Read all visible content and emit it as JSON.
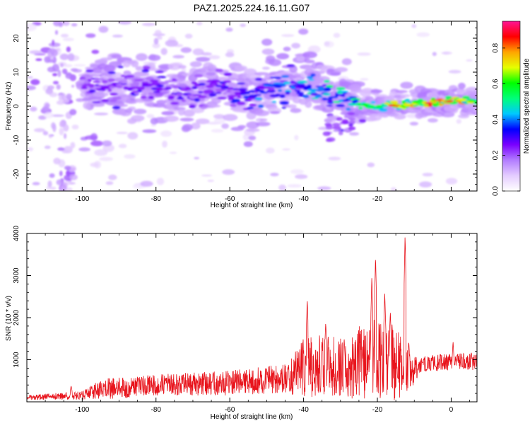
{
  "figure": {
    "title": "PAZ1.2025.224.16.11.G07"
  },
  "chart_data": [
    {
      "type": "heatmap",
      "xlabel": "Height of straight line (km)",
      "ylabel": "Frequency (Hz)",
      "xlim": [
        -115,
        7
      ],
      "ylim": [
        -25,
        25
      ],
      "xticks": [
        -100,
        -80,
        -60,
        -40,
        -20,
        0
      ],
      "yticks": [
        -20,
        -10,
        0,
        10,
        20
      ],
      "grid": false,
      "colorbar": {
        "label": "Normalized spectral amplitude",
        "range": [
          0,
          0.95
        ],
        "ticks": [
          "0.0",
          "0.2",
          "0.4",
          "0.6",
          "0.8"
        ],
        "colormap": [
          "#ffffff",
          "#e4ccff",
          "#b27cff",
          "#7a00ff",
          "#0000ff",
          "#00c8ff",
          "#00ff7a",
          "#00ff00",
          "#e6ff00",
          "#ffa500",
          "#ff0000",
          "#ff1493"
        ]
      },
      "ridge": [
        {
          "x": -100,
          "y": 5.5,
          "a": 0.28
        },
        {
          "x": -90,
          "y": 6,
          "a": 0.3
        },
        {
          "x": -80,
          "y": 5.5,
          "a": 0.3
        },
        {
          "x": -70,
          "y": 5,
          "a": 0.3
        },
        {
          "x": -60,
          "y": 5,
          "a": 0.32
        },
        {
          "x": -54,
          "y": 2.5,
          "a": 0.4
        },
        {
          "x": -45,
          "y": 7,
          "a": 0.42
        },
        {
          "x": -40,
          "y": 6,
          "a": 0.48
        },
        {
          "x": -35,
          "y": 4,
          "a": 0.5
        },
        {
          "x": -30,
          "y": 2,
          "a": 0.5
        },
        {
          "x": -25,
          "y": 0.5,
          "a": 0.55
        },
        {
          "x": -20,
          "y": 0,
          "a": 0.6
        },
        {
          "x": -15,
          "y": 0.5,
          "a": 0.8
        },
        {
          "x": -5,
          "y": 1,
          "a": 0.85
        },
        {
          "x": 0,
          "y": 1.5,
          "a": 0.8
        },
        {
          "x": 7,
          "y": 1.5,
          "a": 0.7
        }
      ]
    },
    {
      "type": "line",
      "xlabel": "Height of straight line (km)",
      "ylabel": "SNR (10 * v/v)",
      "xlim": [
        -115,
        7
      ],
      "ylim": [
        0,
        4000
      ],
      "xticks": [
        -100,
        -80,
        -60,
        -40,
        -20,
        0
      ],
      "yticks": [
        1000,
        2000,
        3000,
        4000
      ],
      "grid": false,
      "series": [
        {
          "color": "#e8141c",
          "envelope": [
            {
              "x": -115,
              "base": 100,
              "spread": 60
            },
            {
              "x": -100,
              "base": 150,
              "spread": 100
            },
            {
              "x": -95,
              "base": 300,
              "spread": 250
            },
            {
              "x": -80,
              "base": 400,
              "spread": 250
            },
            {
              "x": -60,
              "base": 450,
              "spread": 300
            },
            {
              "x": -45,
              "base": 550,
              "spread": 350
            },
            {
              "x": -40,
              "base": 800,
              "spread": 700
            },
            {
              "x": -35,
              "base": 900,
              "spread": 800
            },
            {
              "x": -30,
              "base": 800,
              "spread": 700
            },
            {
              "x": -25,
              "base": 900,
              "spread": 900
            },
            {
              "x": -20,
              "base": 1000,
              "spread": 1000
            },
            {
              "x": -15,
              "base": 900,
              "spread": 900
            },
            {
              "x": -11,
              "base": 700,
              "spread": 400
            },
            {
              "x": -8,
              "base": 900,
              "spread": 200
            },
            {
              "x": 0,
              "base": 950,
              "spread": 200
            },
            {
              "x": 7,
              "base": 950,
              "spread": 200
            }
          ],
          "peaks": [
            {
              "x": -103,
              "y": 380
            },
            {
              "x": -39,
              "y": 2450
            },
            {
              "x": -35,
              "y": 1450
            },
            {
              "x": -34,
              "y": 1900
            },
            {
              "x": -29,
              "y": 1500
            },
            {
              "x": -24,
              "y": 1200
            },
            {
              "x": -21.5,
              "y": 3000
            },
            {
              "x": -20.5,
              "y": 3480
            },
            {
              "x": -18,
              "y": 2600
            },
            {
              "x": -16.5,
              "y": 2150
            },
            {
              "x": -12.5,
              "y": 4000
            },
            {
              "x": -11.5,
              "y": 1450
            },
            {
              "x": 0.5,
              "y": 1450
            },
            {
              "x": 5.5,
              "y": 1200
            }
          ]
        }
      ]
    }
  ]
}
